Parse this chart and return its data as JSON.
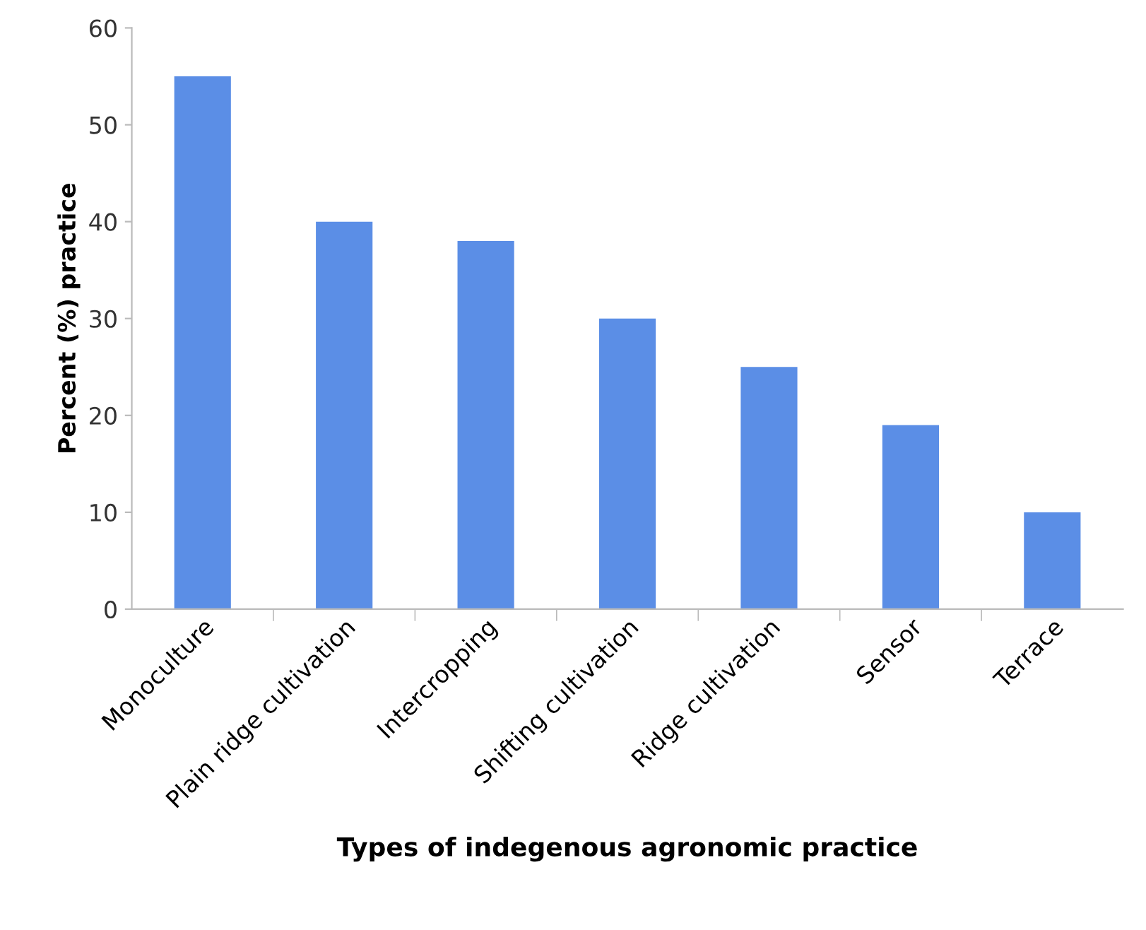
{
  "chart_data": {
    "type": "bar",
    "xlabel": "Types of indegenous agronomic practice",
    "ylabel": "Percent (%) practice",
    "categories": [
      "Monoculture",
      "Plain ridge cultivation",
      "Intercropping",
      "Shifting cultivation",
      "Ridge cultivation",
      "Sensor",
      "Terrace"
    ],
    "values": [
      55,
      40,
      38,
      30,
      25,
      19,
      10
    ],
    "color": "#5b8ee6",
    "ylim": [
      0,
      60
    ],
    "yticks": [
      0,
      10,
      20,
      30,
      40,
      50,
      60
    ],
    "grid": false,
    "legend": false
  }
}
